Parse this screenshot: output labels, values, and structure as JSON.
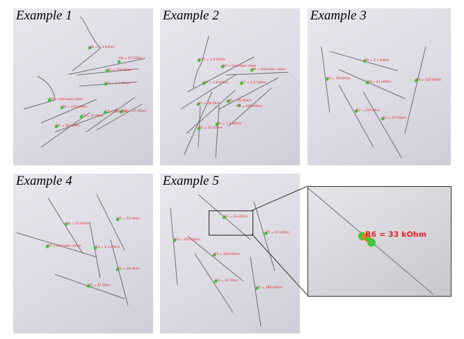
{
  "panels": [
    {
      "title": "Example 1",
      "labels": [
        "R6 = 3.3 kOhm",
        "R8 = 57 kOhm",
        "R5 = 180 Ohm",
        "R4 = 4.7 kOhm",
        "R3 = Unknown value",
        "R9 = 120 kOhm",
        "R2 = 22 Ohm",
        "R1 = 39 kOhm",
        "R7 = 560 Ohm",
        "R10 = 27 kOhm"
      ]
    },
    {
      "title": "Example 2",
      "labels": [
        "R10 = 1.8 kOhm",
        "R4 = Unknown value",
        "R8 = Unknown value",
        "R3 = 1.8 kOhm",
        "R7 = 2.2 kOhm",
        "R6 = 15 kOhm",
        "R9 = 330 kOhm",
        "R5 = 18 Ohm",
        "R2 = 1.2 kOhm",
        "R1 = 22 kOhm"
      ]
    },
    {
      "title": "Example 3",
      "labels": [
        "R6 = 2.7 kOhm",
        "R5 = 39 kOhm",
        "R4 = 47 kOhm",
        "R3 = 120 kOhm",
        "R2 = 220 Ohm",
        "R1 = 27 kOhm"
      ]
    },
    {
      "title": "Example 4",
      "labels": [
        "R6 = 15 kOhm",
        "R5 = 15 Ohm",
        "R4 = Unknown value",
        "R3 = 3.3 kOhm",
        "R2 = 18 Ohm",
        "R1 = 47 Ohm"
      ]
    },
    {
      "title": "Example 5",
      "labels": [
        "R6 = 33 kOhm",
        "R5 = 47 kOhm",
        "R4 = 220 kOhm",
        "R3 = 330 kOhm",
        "R2 = 12 Ohm",
        "R1 = 180 kOhm"
      ]
    }
  ],
  "zoom": {
    "label": "R6 = 33 kOhm"
  },
  "colors": {
    "label_red": "#e0262a",
    "marker_green": "#3ec93e",
    "band_orange": "#d98a1e"
  }
}
